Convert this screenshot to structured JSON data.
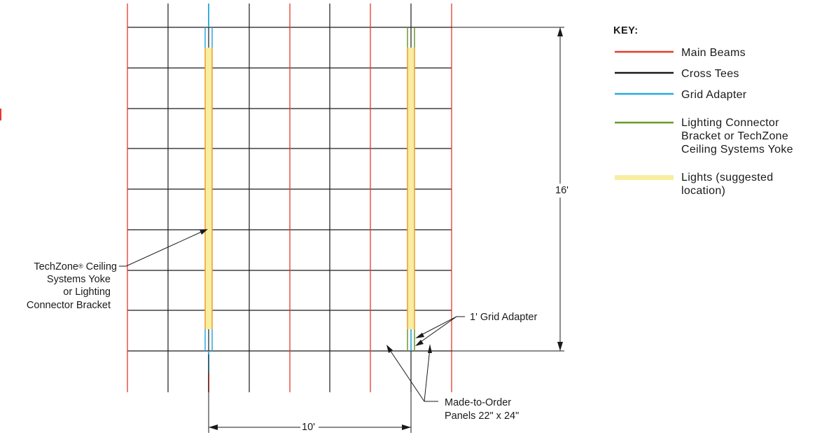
{
  "colors": {
    "main_beam": "#e53a2a",
    "cross_tee": "#1a1a1a",
    "grid_adapter": "#29a9e0",
    "connector": "#6a9a2a",
    "lights": "#f7eea0",
    "light_edge": "#f29a2e"
  },
  "key": {
    "title": "KEY:",
    "items": [
      {
        "name": "main-beams",
        "lines": [
          "Main Beams"
        ]
      },
      {
        "name": "cross-tees",
        "lines": [
          "Cross Tees"
        ]
      },
      {
        "name": "grid-adapter",
        "lines": [
          "Grid Adapter"
        ]
      },
      {
        "name": "lighting-connector",
        "lines": [
          "Lighting Connector",
          "Bracket or TechZone",
          "Ceiling Systems Yoke"
        ]
      },
      {
        "name": "lights",
        "lines": [
          "Lights (suggested",
          "location)"
        ]
      }
    ]
  },
  "dimensions": {
    "height_label": "16'",
    "width_label": "10'"
  },
  "callouts": {
    "yoke": {
      "name_prefix": "TechZone",
      "registered": "®",
      "name_suffix": " Ceiling",
      "lines": [
        "Systems Yoke",
        "or Lighting",
        "Connector Bracket"
      ]
    },
    "grid_adapter": {
      "label": "1' Grid Adapter"
    },
    "panels": {
      "lines": [
        "Made-to-Order",
        "Panels 22\" x 24\""
      ]
    }
  }
}
